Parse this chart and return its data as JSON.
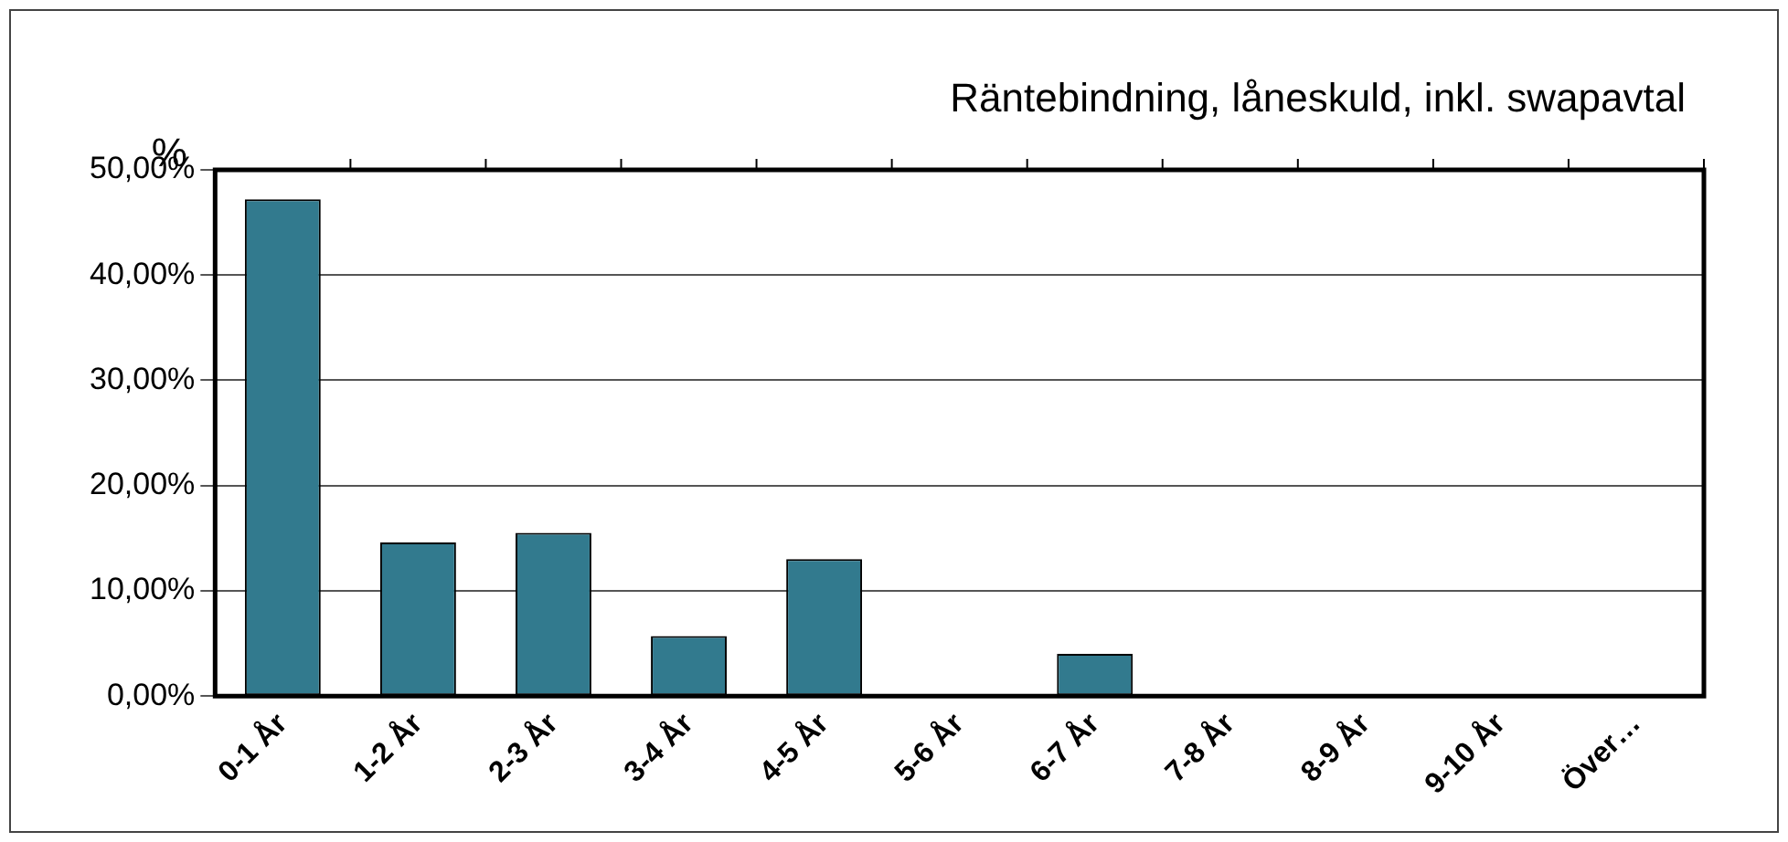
{
  "chart_data": {
    "type": "bar",
    "title": "Räntebindning, låneskuld, inkl. swapavtal",
    "ylabel": "%",
    "categories": [
      "0-1 År",
      "1-2 År",
      "2-3 År",
      "3-4 År",
      "4-5 År",
      "5-6 År",
      "6-7 År",
      "7-8 År",
      "8-9 År",
      "9-10 År",
      "Över…"
    ],
    "values": [
      47.2,
      14.6,
      15.5,
      5.7,
      13.0,
      0,
      4.0,
      0,
      0,
      0,
      0
    ],
    "color": "#327a8e",
    "ylim": [
      0,
      50
    ],
    "yticks": [
      {
        "value": 0,
        "label": "0,00%"
      },
      {
        "value": 10,
        "label": "10,00%"
      },
      {
        "value": 20,
        "label": "20,00%"
      },
      {
        "value": 30,
        "label": "30,00%"
      },
      {
        "value": 40,
        "label": "40,00%"
      },
      {
        "value": 50,
        "label": "50,00%"
      }
    ],
    "grid": "y",
    "legend": false
  }
}
